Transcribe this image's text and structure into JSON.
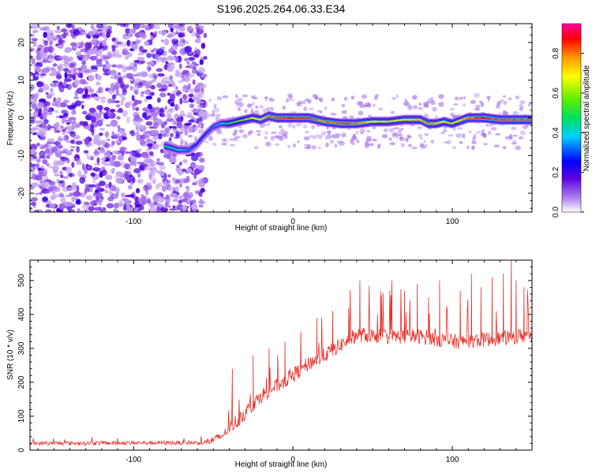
{
  "figure": {
    "title": "S196.2025.264.06.33.E34"
  },
  "chart_data": [
    {
      "type": "heatmap",
      "name": "spectrogram",
      "xlabel": "Height of straight line (km)",
      "ylabel": "Frequency (Hz)",
      "xlim": [
        -165,
        150
      ],
      "ylim": [
        -25,
        25
      ],
      "xticks": [
        -100,
        0,
        100
      ],
      "yticks": [
        -20,
        -10,
        0,
        10,
        20
      ],
      "colorbar": {
        "label": "Normalized spectral amplitude",
        "range": [
          0.0,
          0.95
        ],
        "ticks": [
          0.0,
          0.2,
          0.4,
          0.6,
          0.8
        ]
      },
      "noise_region_end_km": -55,
      "ridge": {
        "x": [
          -80,
          -72,
          -65,
          -60,
          -55,
          -50,
          -45,
          -40,
          -35,
          -30,
          -25,
          -20,
          -15,
          -10,
          -5,
          0,
          10,
          20,
          30,
          40,
          50,
          60,
          70,
          80,
          85,
          90,
          95,
          100,
          110,
          120,
          130,
          140,
          150
        ],
        "freq": [
          -7.5,
          -8.5,
          -8.5,
          -7,
          -4.5,
          -2.5,
          -1.5,
          -1.5,
          -1,
          -0.5,
          0,
          -0.5,
          0.5,
          0,
          0,
          0,
          0,
          -1,
          -1.5,
          -1.5,
          -1,
          -1,
          -0.5,
          -0.5,
          -1.5,
          -1.5,
          -1,
          -1.5,
          0,
          0,
          -0.5,
          -0.5,
          -0.5
        ],
        "amplitude": [
          0.5,
          0.45,
          0.35,
          0.3,
          0.3,
          0.35,
          0.4,
          0.55,
          0.6,
          0.65,
          0.7,
          0.75,
          0.85,
          0.9,
          0.92,
          0.93,
          0.92,
          0.85,
          0.9,
          0.88,
          0.75,
          0.7,
          0.75,
          0.8,
          0.85,
          0.8,
          0.75,
          0.7,
          0.85,
          0.95,
          0.9,
          0.9,
          0.9
        ]
      }
    },
    {
      "type": "line",
      "name": "snr",
      "xlabel": "Height of straight line (km)",
      "ylabel": "SNR (10 * v/v)",
      "xlim": [
        -165,
        150
      ],
      "ylim": [
        0,
        560
      ],
      "xticks": [
        -100,
        0,
        100
      ],
      "yticks": [
        0,
        100,
        200,
        300,
        400,
        500
      ],
      "color": "#e8302a",
      "trend": {
        "x": [
          -165,
          -55,
          -45,
          -30,
          -20,
          -10,
          0,
          10,
          20,
          30,
          40,
          60,
          80,
          100,
          120,
          150
        ],
        "y": [
          20,
          22,
          40,
          110,
          160,
          190,
          220,
          255,
          280,
          310,
          340,
          335,
          335,
          320,
          325,
          340
        ]
      },
      "peaks": {
        "x": [
          -38,
          -25,
          -15,
          -5,
          5,
          15,
          25,
          35,
          42,
          55,
          62,
          70,
          78,
          85,
          92,
          105,
          112,
          118,
          125,
          132,
          137,
          140,
          145,
          150
        ],
        "y": [
          240,
          280,
          300,
          320,
          350,
          390,
          410,
          420,
          500,
          470,
          500,
          470,
          490,
          450,
          500,
          470,
          520,
          480,
          510,
          520,
          560,
          500,
          480,
          470
        ]
      }
    }
  ]
}
